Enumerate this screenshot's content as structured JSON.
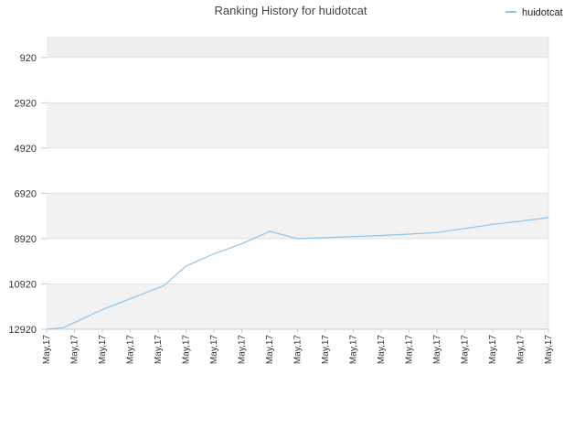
{
  "chart_data": {
    "type": "line",
    "title": "Ranking History for huidotcat",
    "xlabel": "",
    "ylabel": "",
    "legend": {
      "position": "top-right",
      "entries": [
        "huidotcat"
      ]
    },
    "y_inverted": true,
    "ylim": [
      12920,
      0
    ],
    "y_ticks": [
      920,
      2920,
      4920,
      6920,
      8920,
      10920,
      12920
    ],
    "y_tick_labels": [
      "920",
      "2920",
      "4920",
      "6920",
      "8920",
      "10920",
      "12920"
    ],
    "x_tick_labels": [
      "May,17",
      "May,17",
      "May,17",
      "May,17",
      "May,17",
      "May,17",
      "May,17",
      "May,17",
      "May,17",
      "May,17",
      "May,17",
      "May,17",
      "May,17",
      "May,17",
      "May,17",
      "May,17",
      "May,17",
      "May,17",
      "May,17"
    ],
    "series": [
      {
        "name": "huidotcat",
        "color": "#8fc3ea",
        "x_index": [
          0,
          0.6,
          2,
          3.6,
          4.2,
          5,
          6,
          7,
          8,
          9,
          10,
          11,
          12,
          13,
          14,
          15,
          16,
          17,
          18
        ],
        "values": [
          12920,
          12850,
          12050,
          11290,
          11000,
          10130,
          9590,
          9150,
          8600,
          8920,
          8880,
          8830,
          8780,
          8720,
          8650,
          8470,
          8290,
          8150,
          7990
        ]
      }
    ],
    "grid": true,
    "band_colors": [
      "#eeeeee",
      "#ffffff"
    ]
  }
}
